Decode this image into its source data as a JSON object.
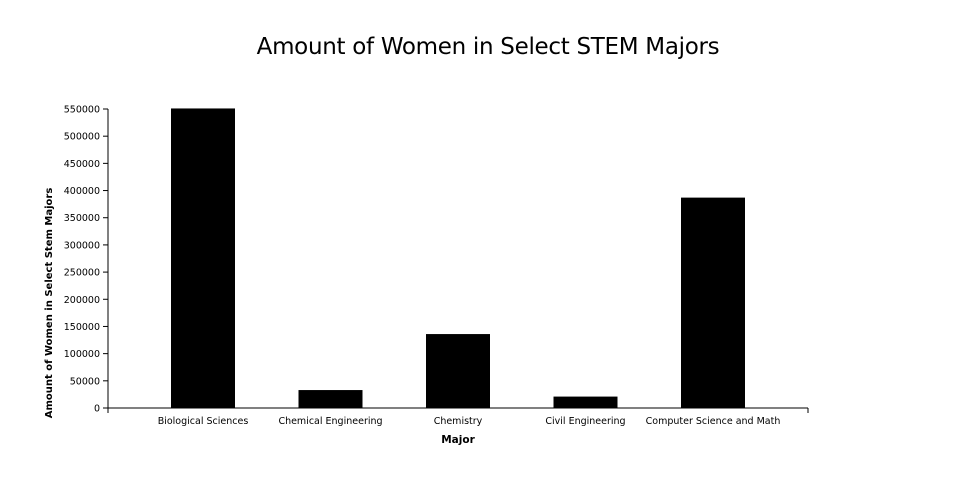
{
  "chart_data": {
    "type": "bar",
    "title": "Amount of Women in Select STEM Majors",
    "xlabel": "Major",
    "ylabel": "Amount of Women in Select Stem Majors",
    "categories": [
      "Biological Sciences",
      "Chemical Engineering",
      "Chemistry",
      "Civil Engineering",
      "Computer Science and Math"
    ],
    "values": [
      551000,
      33000,
      136000,
      21000,
      387000
    ],
    "ylim": [
      0,
      550000
    ],
    "yticks": [
      0,
      50000,
      100000,
      150000,
      200000,
      250000,
      300000,
      350000,
      400000,
      450000,
      500000,
      550000
    ],
    "grid": false,
    "legend": "none",
    "bar_color": "#000000"
  }
}
